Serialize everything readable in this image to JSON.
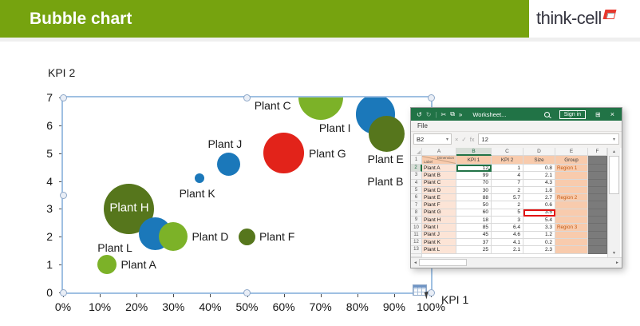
{
  "header": {
    "title": "Bubble chart"
  },
  "logo": {
    "text": "think-cell"
  },
  "chart_data": {
    "type": "scatter",
    "subtype": "bubble",
    "title": "",
    "xlabel": "KPI 1",
    "ylabel": "KPI 2",
    "xlim": [
      0,
      100
    ],
    "ylim": [
      0,
      7
    ],
    "grid": "off",
    "legend": "none",
    "x_tick_labels": [
      "0%",
      "10%",
      "20%",
      "30%",
      "40%",
      "50%",
      "60%",
      "70%",
      "80%",
      "90%",
      "100%"
    ],
    "y_tick_labels": [
      "0",
      "1",
      "2",
      "3",
      "4",
      "5",
      "6",
      "7"
    ],
    "points": [
      {
        "label": "Plant A",
        "kpi1": 12,
        "kpi2": 1,
        "size": 0.8,
        "group": "Region 1",
        "color": "#7CB228"
      },
      {
        "label": "Plant B",
        "kpi1": 99,
        "kpi2": 4,
        "size": 2.1,
        "group": "",
        "color": "#1B78BA"
      },
      {
        "label": "Plant C",
        "kpi1": 70,
        "kpi2": 7,
        "size": 4.3,
        "group": "",
        "color": "#7CB228"
      },
      {
        "label": "Plant D",
        "kpi1": 30,
        "kpi2": 2,
        "size": 1.8,
        "group": "",
        "color": "#7CB228"
      },
      {
        "label": "Plant E",
        "kpi1": 88,
        "kpi2": 5.7,
        "size": 2.7,
        "group": "Region 2",
        "color": "#56761C"
      },
      {
        "label": "Plant F",
        "kpi1": 50,
        "kpi2": 2,
        "size": 0.6,
        "group": "",
        "color": "#56761C"
      },
      {
        "label": "Plant G",
        "kpi1": 60,
        "kpi2": 5,
        "size": 3.5,
        "group": "",
        "color": "#E2231A"
      },
      {
        "label": "Plant H",
        "kpi1": 18,
        "kpi2": 3,
        "size": 5.4,
        "group": "",
        "color": "#56761C"
      },
      {
        "label": "Plant I",
        "kpi1": 85,
        "kpi2": 6.4,
        "size": 3.3,
        "group": "Region 3",
        "color": "#1B78BA"
      },
      {
        "label": "Plant J",
        "kpi1": 45,
        "kpi2": 4.6,
        "size": 1.2,
        "group": "",
        "color": "#1B78BA"
      },
      {
        "label": "Plant K",
        "kpi1": 37,
        "kpi2": 4.1,
        "size": 0.2,
        "group": "",
        "color": "#1B78BA"
      },
      {
        "label": "Plant L",
        "kpi1": 25,
        "kpi2": 2.1,
        "size": 2.3,
        "group": "",
        "color": "#1B78BA"
      }
    ]
  },
  "excel": {
    "titlebar": {
      "undo": "↺",
      "redo": "↻",
      "sep": "|",
      "cut": "✂",
      "copy": "⧉",
      "more": "»",
      "title": "Worksheet...",
      "sign_in": "Sign in",
      "ribbon": "⊞",
      "close": "×"
    },
    "menu": {
      "file": "File"
    },
    "formula_bar": {
      "name_box": "B2",
      "dropdown": "▾",
      "cancel": "×",
      "enter": "✓",
      "fx": "fx",
      "value": "12"
    },
    "columns": [
      "A",
      "B",
      "C",
      "D",
      "E",
      "F"
    ],
    "header_row": {
      "corner_top": "Dimension",
      "corner_bottom": "Label",
      "kpi1": "KPI 1",
      "kpi2": "KPI 2",
      "size": "Size",
      "group": "Group"
    },
    "selected_cell": "B2",
    "red_boxed_cell": "D8",
    "scroll": {
      "up": "▲",
      "down": "▼",
      "left": "◄",
      "right": "►"
    }
  },
  "colors": {
    "header_green": "#76A30F",
    "excel_green": "#217346",
    "selection_blue": "#9FC0E2",
    "peach_header": "#F8CBAD",
    "peach_light": "#FCE4D6",
    "region_text": "#C55A11"
  }
}
